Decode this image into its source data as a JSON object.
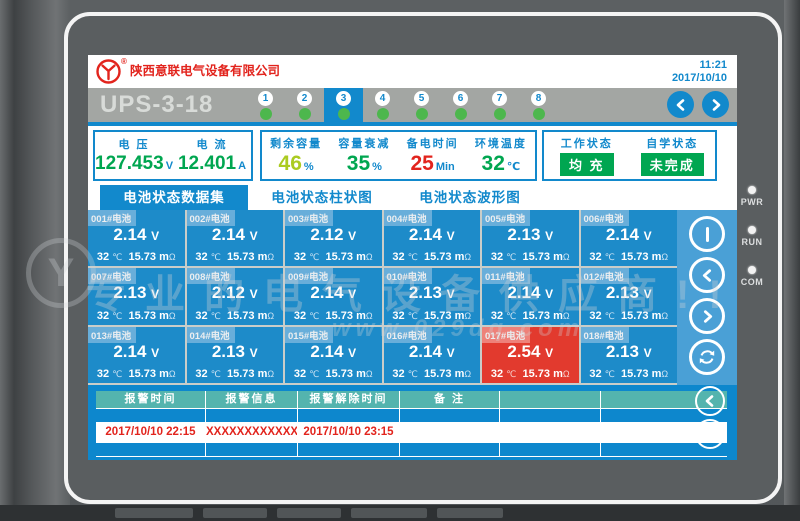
{
  "device": {
    "leds": [
      {
        "label": "PWR"
      },
      {
        "label": "RUN"
      },
      {
        "label": "COM"
      }
    ]
  },
  "header": {
    "company": "陕西意联电气设备有限公司",
    "reg_mark": "®",
    "time": "11:21",
    "date": "2017/10/10"
  },
  "title_bar": {
    "model": "UPS-3-18",
    "indicators": [
      {
        "num": "1",
        "active": false
      },
      {
        "num": "2",
        "active": false
      },
      {
        "num": "3",
        "active": true
      },
      {
        "num": "4",
        "active": false
      },
      {
        "num": "5",
        "active": false
      },
      {
        "num": "6",
        "active": false
      },
      {
        "num": "7",
        "active": false
      },
      {
        "num": "8",
        "active": false
      }
    ]
  },
  "metrics": {
    "voltage": {
      "label": "电 压",
      "value": "127.453",
      "unit": "V"
    },
    "current": {
      "label": "电 流",
      "value": "12.401",
      "unit": "A"
    },
    "capacity": {
      "label": "剩余容量",
      "value": "46",
      "unit": "%"
    },
    "decay": {
      "label": "容量衰减",
      "value": "35",
      "unit": "%"
    },
    "backup": {
      "label": "备电时间",
      "value": "25",
      "unit": "Min"
    },
    "ambient": {
      "label": "环境温度",
      "value": "32",
      "unit": "℃"
    },
    "work_status": {
      "label": "工作状态",
      "value": "均 充"
    },
    "learn_status": {
      "label": "自学状态",
      "value": "未完成"
    }
  },
  "tabs": [
    {
      "label": "电池状态数据集",
      "active": true
    },
    {
      "label": "电池状态柱状图",
      "active": false
    },
    {
      "label": "电池状态波形图",
      "active": false
    }
  ],
  "battery_units": {
    "voltage": "V",
    "temp": "℃",
    "res_prefix": "m",
    "ohm": "Ω"
  },
  "batteries": [
    {
      "id": "001#电池",
      "voltage": "2.14",
      "temp": "32",
      "resistance": "15.73",
      "alarm": false
    },
    {
      "id": "002#电池",
      "voltage": "2.14",
      "temp": "32",
      "resistance": "15.73",
      "alarm": false
    },
    {
      "id": "003#电池",
      "voltage": "2.12",
      "temp": "32",
      "resistance": "15.73",
      "alarm": false
    },
    {
      "id": "004#电池",
      "voltage": "2.14",
      "temp": "32",
      "resistance": "15.73",
      "alarm": false
    },
    {
      "id": "005#电池",
      "voltage": "2.13",
      "temp": "32",
      "resistance": "15.73",
      "alarm": false
    },
    {
      "id": "006#电池",
      "voltage": "2.14",
      "temp": "32",
      "resistance": "15.73",
      "alarm": false
    },
    {
      "id": "007#电池",
      "voltage": "2.13",
      "temp": "32",
      "resistance": "15.73",
      "alarm": false
    },
    {
      "id": "008#电池",
      "voltage": "2.12",
      "temp": "32",
      "resistance": "15.73",
      "alarm": false
    },
    {
      "id": "009#电池",
      "voltage": "2.14",
      "temp": "32",
      "resistance": "15.73",
      "alarm": false
    },
    {
      "id": "010#电池",
      "voltage": "2.13",
      "temp": "32",
      "resistance": "15.73",
      "alarm": false
    },
    {
      "id": "011#电池",
      "voltage": "2.14",
      "temp": "32",
      "resistance": "15.73",
      "alarm": false
    },
    {
      "id": "012#电池",
      "voltage": "2.13",
      "temp": "32",
      "resistance": "15.73",
      "alarm": false
    },
    {
      "id": "013#电池",
      "voltage": "2.14",
      "temp": "32",
      "resistance": "15.73",
      "alarm": false
    },
    {
      "id": "014#电池",
      "voltage": "2.13",
      "temp": "32",
      "resistance": "15.73",
      "alarm": false
    },
    {
      "id": "015#电池",
      "voltage": "2.14",
      "temp": "32",
      "resistance": "15.73",
      "alarm": false
    },
    {
      "id": "016#电池",
      "voltage": "2.14",
      "temp": "32",
      "resistance": "15.73",
      "alarm": false
    },
    {
      "id": "017#电池",
      "voltage": "2.54",
      "temp": "32",
      "resistance": "15.73",
      "alarm": true
    },
    {
      "id": "018#电池",
      "voltage": "2.13",
      "temp": "32",
      "resistance": "15.73",
      "alarm": false
    }
  ],
  "alarm_table": {
    "headers": [
      "报警时间",
      "报警信息",
      "报警解除时间",
      "备 注",
      "",
      ""
    ],
    "rows": [
      {
        "time": "2017/10/10  22:15",
        "info": "XXXXXXXXXXXX",
        "clear_time": "2017/10/10  23:15",
        "note": ""
      }
    ]
  },
  "icons": {
    "header_nav": [
      "chevron-left",
      "chevron-right"
    ],
    "side_buttons": [
      "pause-bar",
      "chevron-left",
      "chevron-right",
      "refresh"
    ],
    "alarm_buttons": [
      "chevron-left",
      "chevron-right"
    ]
  },
  "watermark": {
    "line1": "专业的电气设备供应商!!",
    "line2": "www.029dq.com",
    "logo_glyph": "Y"
  },
  "colors": {
    "accent_blue": "#1289cc",
    "cell_blue": "#1d8bc9",
    "tag_blue": "#68aeda",
    "alarm_red": "#e23a2e",
    "text_red": "#e2241d",
    "value_green": "#00a650",
    "lime": "#abcb21",
    "badge_green": "#00a651",
    "teal_header": "#54b4ae",
    "alarm_bg": "#0d87cd",
    "sidebar_blue": "#4aa0d6",
    "titlebar_gray": "#a3a6a3",
    "led_green": "#4db74d"
  }
}
